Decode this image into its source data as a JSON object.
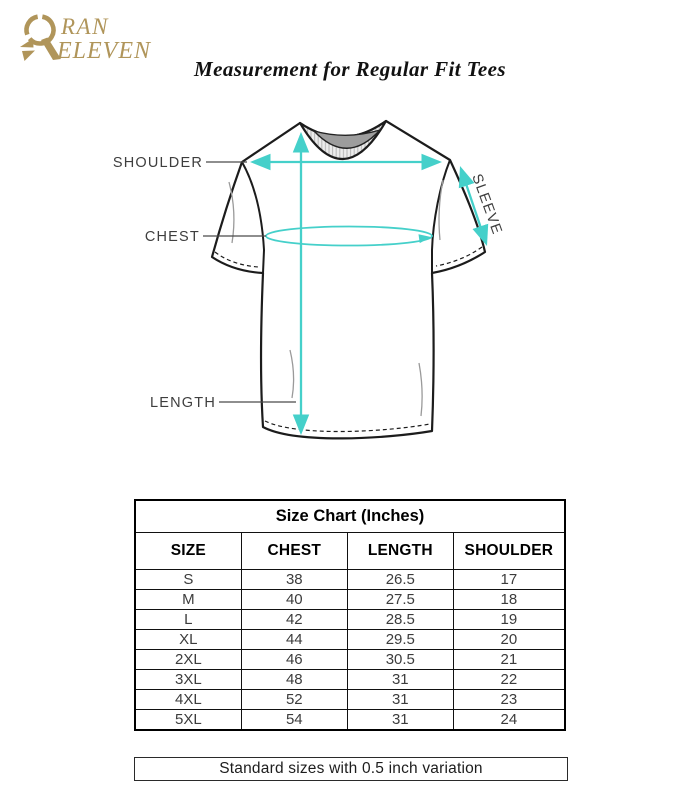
{
  "brand": {
    "line1": "RAN",
    "line2": "ELEVEN",
    "gold_color": "#b0955a"
  },
  "page_title": "Measurement for Regular Fit Tees",
  "diagram": {
    "accent_color": "#45d0ca",
    "labels": {
      "shoulder": "SHOULDER",
      "chest": "CHEST",
      "length": "LENGTH",
      "sleeve": "SLEEVE"
    }
  },
  "size_chart": {
    "title": "Size Chart (Inches)",
    "columns": [
      "SIZE",
      "CHEST",
      "LENGTH",
      "SHOULDER"
    ],
    "rows": [
      {
        "size": "S",
        "chest": "38",
        "length": "26.5",
        "shoulder": "17"
      },
      {
        "size": "M",
        "chest": "40",
        "length": "27.5",
        "shoulder": "18"
      },
      {
        "size": "L",
        "chest": "42",
        "length": "28.5",
        "shoulder": "19"
      },
      {
        "size": "XL",
        "chest": "44",
        "length": "29.5",
        "shoulder": "20"
      },
      {
        "size": "2XL",
        "chest": "46",
        "length": "30.5",
        "shoulder": "21"
      },
      {
        "size": "3XL",
        "chest": "48",
        "length": "31",
        "shoulder": "22"
      },
      {
        "size": "4XL",
        "chest": "52",
        "length": "31",
        "shoulder": "23"
      },
      {
        "size": "5XL",
        "chest": "54",
        "length": "31",
        "shoulder": "24"
      }
    ]
  },
  "footnote": "Standard sizes with 0.5 inch variation"
}
